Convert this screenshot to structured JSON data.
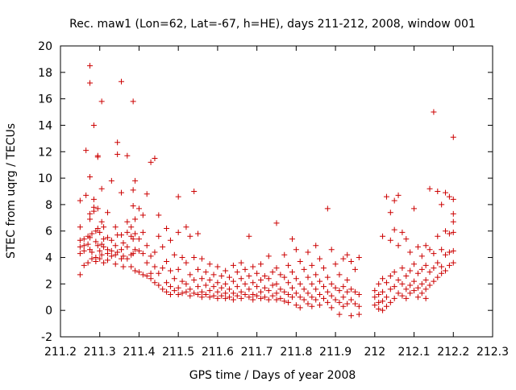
{
  "chart_data": {
    "type": "scatter",
    "title": "Rec. maw1 (Lon=62, Lat=-67, h=HE), days 211-212, 2008, window 001",
    "xlabel": "GPS time / Days of year 2008",
    "ylabel": "STEC from uqrg / TECUs",
    "xlim": [
      211.2,
      212.3
    ],
    "ylim": [
      -2,
      20
    ],
    "xticks": [
      "211.2",
      "211.3",
      "211.4",
      "211.5",
      "211.6",
      "211.7",
      "211.8",
      "211.9",
      "212",
      "212.1",
      "212.2",
      "212.3"
    ],
    "yticks": [
      "-2",
      "0",
      "2",
      "4",
      "6",
      "8",
      "10",
      "12",
      "14",
      "16",
      "18",
      "20"
    ],
    "grid": false,
    "marker": "+",
    "marker_color": "#cc0000",
    "points": [
      [
        211.25,
        8.3
      ],
      [
        211.25,
        6.3
      ],
      [
        211.25,
        5.3
      ],
      [
        211.25,
        4.8
      ],
      [
        211.25,
        4.3
      ],
      [
        211.25,
        2.7
      ],
      [
        211.26,
        5.4
      ],
      [
        211.26,
        4.9
      ],
      [
        211.26,
        4.5
      ],
      [
        211.26,
        3.4
      ],
      [
        211.265,
        12.1
      ],
      [
        211.265,
        8.7
      ],
      [
        211.27,
        5.6
      ],
      [
        211.27,
        5.0
      ],
      [
        211.27,
        3.6
      ],
      [
        211.275,
        18.5
      ],
      [
        211.275,
        17.2
      ],
      [
        211.275,
        10.1
      ],
      [
        211.275,
        7.3
      ],
      [
        211.275,
        6.9
      ],
      [
        211.275,
        5.5
      ],
      [
        211.275,
        4.6
      ],
      [
        211.28,
        5.8
      ],
      [
        211.28,
        4.4
      ],
      [
        211.28,
        3.9
      ],
      [
        211.285,
        14.0
      ],
      [
        211.285,
        8.4
      ],
      [
        211.285,
        7.8
      ],
      [
        211.285,
        7.5
      ],
      [
        211.29,
        6.0
      ],
      [
        211.29,
        5.2
      ],
      [
        211.29,
        4.0
      ],
      [
        211.29,
        3.7
      ],
      [
        211.295,
        11.7
      ],
      [
        211.295,
        11.6
      ],
      [
        211.295,
        7.7
      ],
      [
        211.295,
        6.2
      ],
      [
        211.295,
        4.9
      ],
      [
        211.3,
        5.9
      ],
      [
        211.3,
        4.5
      ],
      [
        211.3,
        3.9
      ],
      [
        211.305,
        15.8
      ],
      [
        211.305,
        9.2
      ],
      [
        211.305,
        6.7
      ],
      [
        211.305,
        5.0
      ],
      [
        211.305,
        4.2
      ],
      [
        211.31,
        6.3
      ],
      [
        211.31,
        5.4
      ],
      [
        211.31,
        4.8
      ],
      [
        211.31,
        3.6
      ],
      [
        211.32,
        7.4
      ],
      [
        211.32,
        5.5
      ],
      [
        211.32,
        4.6
      ],
      [
        211.32,
        4.3
      ],
      [
        211.32,
        3.8
      ],
      [
        211.33,
        9.8
      ],
      [
        211.33,
        5.3
      ],
      [
        211.33,
        4.5
      ],
      [
        211.33,
        4.1
      ],
      [
        211.34,
        6.3
      ],
      [
        211.34,
        4.9
      ],
      [
        211.34,
        4.2
      ],
      [
        211.34,
        3.5
      ],
      [
        211.345,
        12.7
      ],
      [
        211.345,
        11.8
      ],
      [
        211.345,
        5.7
      ],
      [
        211.345,
        4.4
      ],
      [
        211.355,
        17.3
      ],
      [
        211.355,
        8.9
      ],
      [
        211.355,
        5.7
      ],
      [
        211.355,
        4.6
      ],
      [
        211.355,
        3.9
      ],
      [
        211.36,
        5.1
      ],
      [
        211.36,
        4.1
      ],
      [
        211.36,
        3.3
      ],
      [
        211.37,
        11.7
      ],
      [
        211.37,
        6.7
      ],
      [
        211.37,
        5.9
      ],
      [
        211.37,
        4.8
      ],
      [
        211.37,
        3.9
      ],
      [
        211.38,
        6.3
      ],
      [
        211.38,
        5.6
      ],
      [
        211.38,
        4.2
      ],
      [
        211.38,
        3.3
      ],
      [
        211.385,
        15.8
      ],
      [
        211.385,
        9.1
      ],
      [
        211.385,
        7.9
      ],
      [
        211.385,
        5.4
      ],
      [
        211.385,
        4.3
      ],
      [
        211.39,
        9.8
      ],
      [
        211.39,
        6.9
      ],
      [
        211.39,
        5.8
      ],
      [
        211.39,
        4.6
      ],
      [
        211.39,
        3.0
      ],
      [
        211.4,
        7.7
      ],
      [
        211.4,
        5.4
      ],
      [
        211.4,
        4.5
      ],
      [
        211.4,
        2.9
      ],
      [
        211.41,
        7.2
      ],
      [
        211.41,
        5.9
      ],
      [
        211.41,
        4.3
      ],
      [
        211.41,
        2.7
      ],
      [
        211.42,
        8.8
      ],
      [
        211.42,
        4.9
      ],
      [
        211.42,
        3.6
      ],
      [
        211.42,
        2.6
      ],
      [
        211.43,
        11.2
      ],
      [
        211.43,
        4.1
      ],
      [
        211.43,
        2.8
      ],
      [
        211.43,
        2.4
      ],
      [
        211.44,
        11.5
      ],
      [
        211.44,
        4.4
      ],
      [
        211.44,
        3.3
      ],
      [
        211.44,
        2.1
      ],
      [
        211.45,
        7.2
      ],
      [
        211.45,
        5.6
      ],
      [
        211.45,
        2.8
      ],
      [
        211.45,
        1.9
      ],
      [
        211.46,
        4.8
      ],
      [
        211.46,
        3.2
      ],
      [
        211.46,
        1.6
      ],
      [
        211.47,
        6.2
      ],
      [
        211.47,
        3.7
      ],
      [
        211.47,
        2.1
      ],
      [
        211.47,
        1.4
      ],
      [
        211.48,
        5.3
      ],
      [
        211.48,
        3.0
      ],
      [
        211.48,
        1.8
      ],
      [
        211.48,
        1.2
      ],
      [
        211.49,
        4.2
      ],
      [
        211.49,
        2.4
      ],
      [
        211.49,
        1.5
      ],
      [
        211.5,
        8.6
      ],
      [
        211.5,
        5.9
      ],
      [
        211.5,
        3.1
      ],
      [
        211.5,
        1.7
      ],
      [
        211.5,
        1.2
      ],
      [
        211.51,
        4.0
      ],
      [
        211.51,
        2.2
      ],
      [
        211.51,
        1.3
      ],
      [
        211.52,
        6.3
      ],
      [
        211.52,
        3.6
      ],
      [
        211.52,
        2.0
      ],
      [
        211.52,
        1.4
      ],
      [
        211.53,
        5.6
      ],
      [
        211.53,
        2.7
      ],
      [
        211.53,
        1.6
      ],
      [
        211.53,
        1.1
      ],
      [
        211.54,
        9.0
      ],
      [
        211.54,
        4.0
      ],
      [
        211.54,
        2.3
      ],
      [
        211.54,
        1.3
      ],
      [
        211.55,
        5.8
      ],
      [
        211.55,
        3.1
      ],
      [
        211.55,
        1.8
      ],
      [
        211.55,
        1.2
      ],
      [
        211.56,
        3.9
      ],
      [
        211.56,
        2.4
      ],
      [
        211.56,
        1.4
      ],
      [
        211.56,
        1.0
      ],
      [
        211.57,
        2.9
      ],
      [
        211.57,
        1.9
      ],
      [
        211.57,
        1.2
      ],
      [
        211.58,
        3.5
      ],
      [
        211.58,
        2.3
      ],
      [
        211.58,
        1.5
      ],
      [
        211.58,
        1.0
      ],
      [
        211.59,
        2.7
      ],
      [
        211.59,
        1.8
      ],
      [
        211.59,
        1.1
      ],
      [
        211.6,
        3.3
      ],
      [
        211.6,
        2.1
      ],
      [
        211.6,
        1.4
      ],
      [
        211.6,
        0.9
      ],
      [
        211.61,
        2.6
      ],
      [
        211.61,
        1.7
      ],
      [
        211.61,
        1.1
      ],
      [
        211.62,
        3.0
      ],
      [
        211.62,
        2.0
      ],
      [
        211.62,
        1.3
      ],
      [
        211.62,
        0.9
      ],
      [
        211.63,
        2.5
      ],
      [
        211.63,
        1.6
      ],
      [
        211.63,
        1.0
      ],
      [
        211.64,
        3.4
      ],
      [
        211.64,
        2.2
      ],
      [
        211.64,
        1.3
      ],
      [
        211.64,
        0.8
      ],
      [
        211.65,
        2.9
      ],
      [
        211.65,
        1.8
      ],
      [
        211.65,
        1.1
      ],
      [
        211.66,
        3.6
      ],
      [
        211.66,
        2.4
      ],
      [
        211.66,
        1.4
      ],
      [
        211.66,
        0.9
      ],
      [
        211.67,
        3.1
      ],
      [
        211.67,
        2.0
      ],
      [
        211.67,
        1.2
      ],
      [
        211.68,
        5.6
      ],
      [
        211.68,
        2.6
      ],
      [
        211.68,
        1.6
      ],
      [
        211.68,
        1.0
      ],
      [
        211.69,
        3.3
      ],
      [
        211.69,
        2.1
      ],
      [
        211.69,
        1.2
      ],
      [
        211.69,
        0.8
      ],
      [
        211.7,
        2.8
      ],
      [
        211.7,
        1.8
      ],
      [
        211.7,
        1.1
      ],
      [
        211.71,
        3.5
      ],
      [
        211.71,
        2.3
      ],
      [
        211.71,
        1.4
      ],
      [
        211.71,
        0.9
      ],
      [
        211.72,
        2.6
      ],
      [
        211.72,
        1.7
      ],
      [
        211.72,
        1.0
      ],
      [
        211.73,
        4.1
      ],
      [
        211.73,
        2.4
      ],
      [
        211.73,
        1.5
      ],
      [
        211.73,
        0.8
      ],
      [
        211.74,
        2.9
      ],
      [
        211.74,
        1.9
      ],
      [
        211.74,
        1.1
      ],
      [
        211.75,
        6.6
      ],
      [
        211.75,
        3.2
      ],
      [
        211.75,
        2.0
      ],
      [
        211.75,
        1.3
      ],
      [
        211.75,
        0.8
      ],
      [
        211.76,
        2.7
      ],
      [
        211.76,
        1.6
      ],
      [
        211.76,
        0.9
      ],
      [
        211.77,
        4.2
      ],
      [
        211.77,
        2.5
      ],
      [
        211.77,
        1.4
      ],
      [
        211.77,
        0.7
      ],
      [
        211.78,
        3.4
      ],
      [
        211.78,
        2.1
      ],
      [
        211.78,
        1.2
      ],
      [
        211.78,
        0.6
      ],
      [
        211.79,
        5.4
      ],
      [
        211.79,
        2.9
      ],
      [
        211.79,
        1.7
      ],
      [
        211.79,
        1.0
      ],
      [
        211.8,
        4.6
      ],
      [
        211.8,
        2.4
      ],
      [
        211.8,
        1.3
      ],
      [
        211.8,
        0.4
      ],
      [
        211.81,
        3.7
      ],
      [
        211.81,
        2.0
      ],
      [
        211.81,
        1.0
      ],
      [
        211.81,
        0.2
      ],
      [
        211.82,
        3.1
      ],
      [
        211.82,
        1.6
      ],
      [
        211.82,
        0.8
      ],
      [
        211.83,
        4.4
      ],
      [
        211.83,
        2.5
      ],
      [
        211.83,
        1.3
      ],
      [
        211.83,
        0.5
      ],
      [
        211.84,
        3.4
      ],
      [
        211.84,
        2.0
      ],
      [
        211.84,
        1.0
      ],
      [
        211.84,
        0.3
      ],
      [
        211.85,
        4.9
      ],
      [
        211.85,
        2.7
      ],
      [
        211.85,
        1.6
      ],
      [
        211.85,
        0.8
      ],
      [
        211.86,
        3.9
      ],
      [
        211.86,
        2.2
      ],
      [
        211.86,
        1.2
      ],
      [
        211.86,
        0.4
      ],
      [
        211.87,
        3.2
      ],
      [
        211.87,
        1.8
      ],
      [
        211.87,
        0.9
      ],
      [
        211.88,
        7.7
      ],
      [
        211.88,
        2.5
      ],
      [
        211.88,
        1.4
      ],
      [
        211.88,
        0.6
      ],
      [
        211.89,
        4.6
      ],
      [
        211.89,
        2.0
      ],
      [
        211.89,
        1.1
      ],
      [
        211.89,
        0.2
      ],
      [
        211.9,
        3.5
      ],
      [
        211.9,
        1.7
      ],
      [
        211.9,
        0.8
      ],
      [
        211.91,
        2.7
      ],
      [
        211.91,
        1.5
      ],
      [
        211.91,
        0.6
      ],
      [
        211.91,
        -0.3
      ],
      [
        211.92,
        3.9
      ],
      [
        211.92,
        1.8
      ],
      [
        211.92,
        1.0
      ],
      [
        211.92,
        0.3
      ],
      [
        211.93,
        4.2
      ],
      [
        211.93,
        2.3
      ],
      [
        211.93,
        1.4
      ],
      [
        211.93,
        0.5
      ],
      [
        211.94,
        3.7
      ],
      [
        211.94,
        1.6
      ],
      [
        211.94,
        0.8
      ],
      [
        211.94,
        -0.4
      ],
      [
        211.95,
        3.1
      ],
      [
        211.95,
        1.4
      ],
      [
        211.95,
        0.5
      ],
      [
        211.96,
        4.0
      ],
      [
        211.96,
        1.2
      ],
      [
        211.96,
        0.3
      ],
      [
        211.96,
        -0.3
      ],
      [
        212.0,
        1.5
      ],
      [
        212.0,
        1.0
      ],
      [
        212.0,
        0.4
      ],
      [
        212.01,
        2.0
      ],
      [
        212.01,
        1.2
      ],
      [
        212.01,
        0.6
      ],
      [
        212.01,
        0.1
      ],
      [
        212.02,
        5.6
      ],
      [
        212.02,
        2.4
      ],
      [
        212.02,
        1.4
      ],
      [
        212.02,
        0.7
      ],
      [
        212.02,
        0.0
      ],
      [
        212.03,
        8.6
      ],
      [
        212.03,
        2.1
      ],
      [
        212.03,
        1.0
      ],
      [
        212.03,
        0.3
      ],
      [
        212.04,
        7.4
      ],
      [
        212.04,
        5.3
      ],
      [
        212.04,
        2.6
      ],
      [
        212.04,
        1.6
      ],
      [
        212.04,
        0.6
      ],
      [
        212.05,
        8.3
      ],
      [
        212.05,
        6.1
      ],
      [
        212.05,
        2.9
      ],
      [
        212.05,
        1.8
      ],
      [
        212.05,
        0.9
      ],
      [
        212.06,
        8.7
      ],
      [
        212.06,
        4.9
      ],
      [
        212.06,
        2.3
      ],
      [
        212.06,
        1.3
      ],
      [
        212.07,
        5.9
      ],
      [
        212.07,
        3.2
      ],
      [
        212.07,
        2.0
      ],
      [
        212.07,
        1.1
      ],
      [
        212.08,
        5.4
      ],
      [
        212.08,
        2.6
      ],
      [
        212.08,
        1.6
      ],
      [
        212.08,
        0.9
      ],
      [
        212.09,
        4.4
      ],
      [
        212.09,
        3.0
      ],
      [
        212.09,
        1.9
      ],
      [
        212.09,
        1.3
      ],
      [
        212.1,
        7.7
      ],
      [
        212.1,
        3.5
      ],
      [
        212.1,
        2.2
      ],
      [
        212.1,
        1.5
      ],
      [
        212.11,
        4.8
      ],
      [
        212.11,
        2.8
      ],
      [
        212.11,
        1.7
      ],
      [
        212.11,
        1.0
      ],
      [
        212.12,
        4.1
      ],
      [
        212.12,
        3.1
      ],
      [
        212.12,
        2.0
      ],
      [
        212.12,
        1.3
      ],
      [
        212.13,
        4.9
      ],
      [
        212.13,
        3.4
      ],
      [
        212.13,
        2.3
      ],
      [
        212.13,
        1.6
      ],
      [
        212.13,
        0.9
      ],
      [
        212.14,
        9.2
      ],
      [
        212.14,
        4.6
      ],
      [
        212.14,
        2.9
      ],
      [
        212.14,
        1.9
      ],
      [
        212.15,
        15.0
      ],
      [
        212.15,
        4.3
      ],
      [
        212.15,
        3.2
      ],
      [
        212.15,
        2.2
      ],
      [
        212.16,
        9.0
      ],
      [
        212.16,
        5.6
      ],
      [
        212.16,
        3.6
      ],
      [
        212.16,
        2.5
      ],
      [
        212.17,
        8.0
      ],
      [
        212.17,
        4.6
      ],
      [
        212.17,
        3.3
      ],
      [
        212.17,
        2.8
      ],
      [
        212.18,
        8.9
      ],
      [
        212.18,
        6.0
      ],
      [
        212.18,
        4.2
      ],
      [
        212.18,
        3.0
      ],
      [
        212.19,
        8.6
      ],
      [
        212.19,
        5.8
      ],
      [
        212.19,
        4.4
      ],
      [
        212.19,
        3.4
      ],
      [
        212.2,
        13.1
      ],
      [
        212.2,
        8.4
      ],
      [
        212.2,
        7.3
      ],
      [
        212.2,
        6.7
      ],
      [
        212.2,
        5.9
      ],
      [
        212.2,
        4.5
      ],
      [
        212.2,
        3.6
      ]
    ]
  }
}
